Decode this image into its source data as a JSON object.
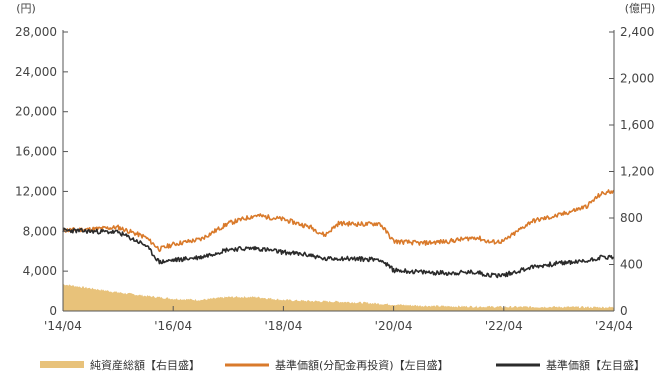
{
  "chart_data": {
    "type": "line",
    "left_unit": "(円)",
    "right_unit": "(億円)",
    "left_axis": {
      "range": [
        0,
        28000
      ],
      "ticks": [
        "0",
        "4,000",
        "8,000",
        "12,000",
        "16,000",
        "20,000",
        "24,000",
        "28,000"
      ]
    },
    "right_axis": {
      "range": [
        0,
        2400
      ],
      "ticks": [
        "0",
        "400",
        "800",
        "1,200",
        "1,600",
        "2,000",
        "2,400"
      ]
    },
    "x_axis": {
      "range": [
        "2014-04",
        "2024-04"
      ],
      "ticks": [
        "'14/04",
        "'16/04",
        "'18/04",
        "'20/04",
        "'22/04",
        "'24/04"
      ]
    },
    "grid": false,
    "legend_position": "bottom",
    "colors": {
      "net_assets": "#e8c27a",
      "nav_reinvested": "#d97a2b",
      "nav": "#2b2b2b",
      "axis": "#555555"
    },
    "series": [
      {
        "name": "純資産総額【右目盛】",
        "type": "area",
        "axis": "right",
        "x": [
          "2014-04",
          "2014-10",
          "2015-04",
          "2015-10",
          "2016-04",
          "2016-10",
          "2017-04",
          "2017-10",
          "2018-04",
          "2018-10",
          "2019-04",
          "2019-10",
          "2020-04",
          "2020-10",
          "2021-04",
          "2021-10",
          "2022-04",
          "2022-10",
          "2023-04",
          "2023-10",
          "2024-04"
        ],
        "values": [
          230,
          195,
          160,
          130,
          105,
          95,
          120,
          120,
          95,
          85,
          80,
          70,
          55,
          45,
          40,
          38,
          35,
          35,
          35,
          33,
          32
        ]
      },
      {
        "name": "基準価額(分配金再投資)【左目盛】",
        "type": "line",
        "axis": "left",
        "x": [
          "2014-04",
          "2014-10",
          "2015-04",
          "2015-10",
          "2016-01",
          "2016-04",
          "2016-10",
          "2017-04",
          "2017-10",
          "2018-04",
          "2018-10",
          "2019-01",
          "2019-04",
          "2019-10",
          "2020-01",
          "2020-04",
          "2020-10",
          "2021-04",
          "2021-10",
          "2022-01",
          "2022-04",
          "2022-10",
          "2023-04",
          "2023-10",
          "2024-01",
          "2024-04"
        ],
        "values": [
          8100,
          8200,
          8400,
          7400,
          6200,
          6700,
          7200,
          8800,
          9600,
          9200,
          8400,
          7600,
          8800,
          8700,
          8800,
          7000,
          6800,
          7000,
          7400,
          6900,
          7000,
          9000,
          9600,
          10500,
          11700,
          12100
        ]
      },
      {
        "name": "基準価額【左目盛】",
        "type": "line",
        "axis": "left",
        "x": [
          "2014-04",
          "2014-10",
          "2015-04",
          "2015-10",
          "2016-01",
          "2016-04",
          "2016-10",
          "2017-04",
          "2017-10",
          "2018-04",
          "2018-10",
          "2019-01",
          "2019-04",
          "2019-10",
          "2020-01",
          "2020-04",
          "2020-10",
          "2021-04",
          "2021-10",
          "2022-01",
          "2022-04",
          "2022-10",
          "2023-04",
          "2023-10",
          "2024-01",
          "2024-04"
        ],
        "values": [
          8100,
          8000,
          7900,
          6600,
          4900,
          5100,
          5400,
          6200,
          6300,
          5900,
          5600,
          5200,
          5300,
          5200,
          5200,
          4100,
          3900,
          3800,
          3900,
          3600,
          3600,
          4400,
          4800,
          5000,
          5400,
          5400
        ]
      }
    ]
  }
}
